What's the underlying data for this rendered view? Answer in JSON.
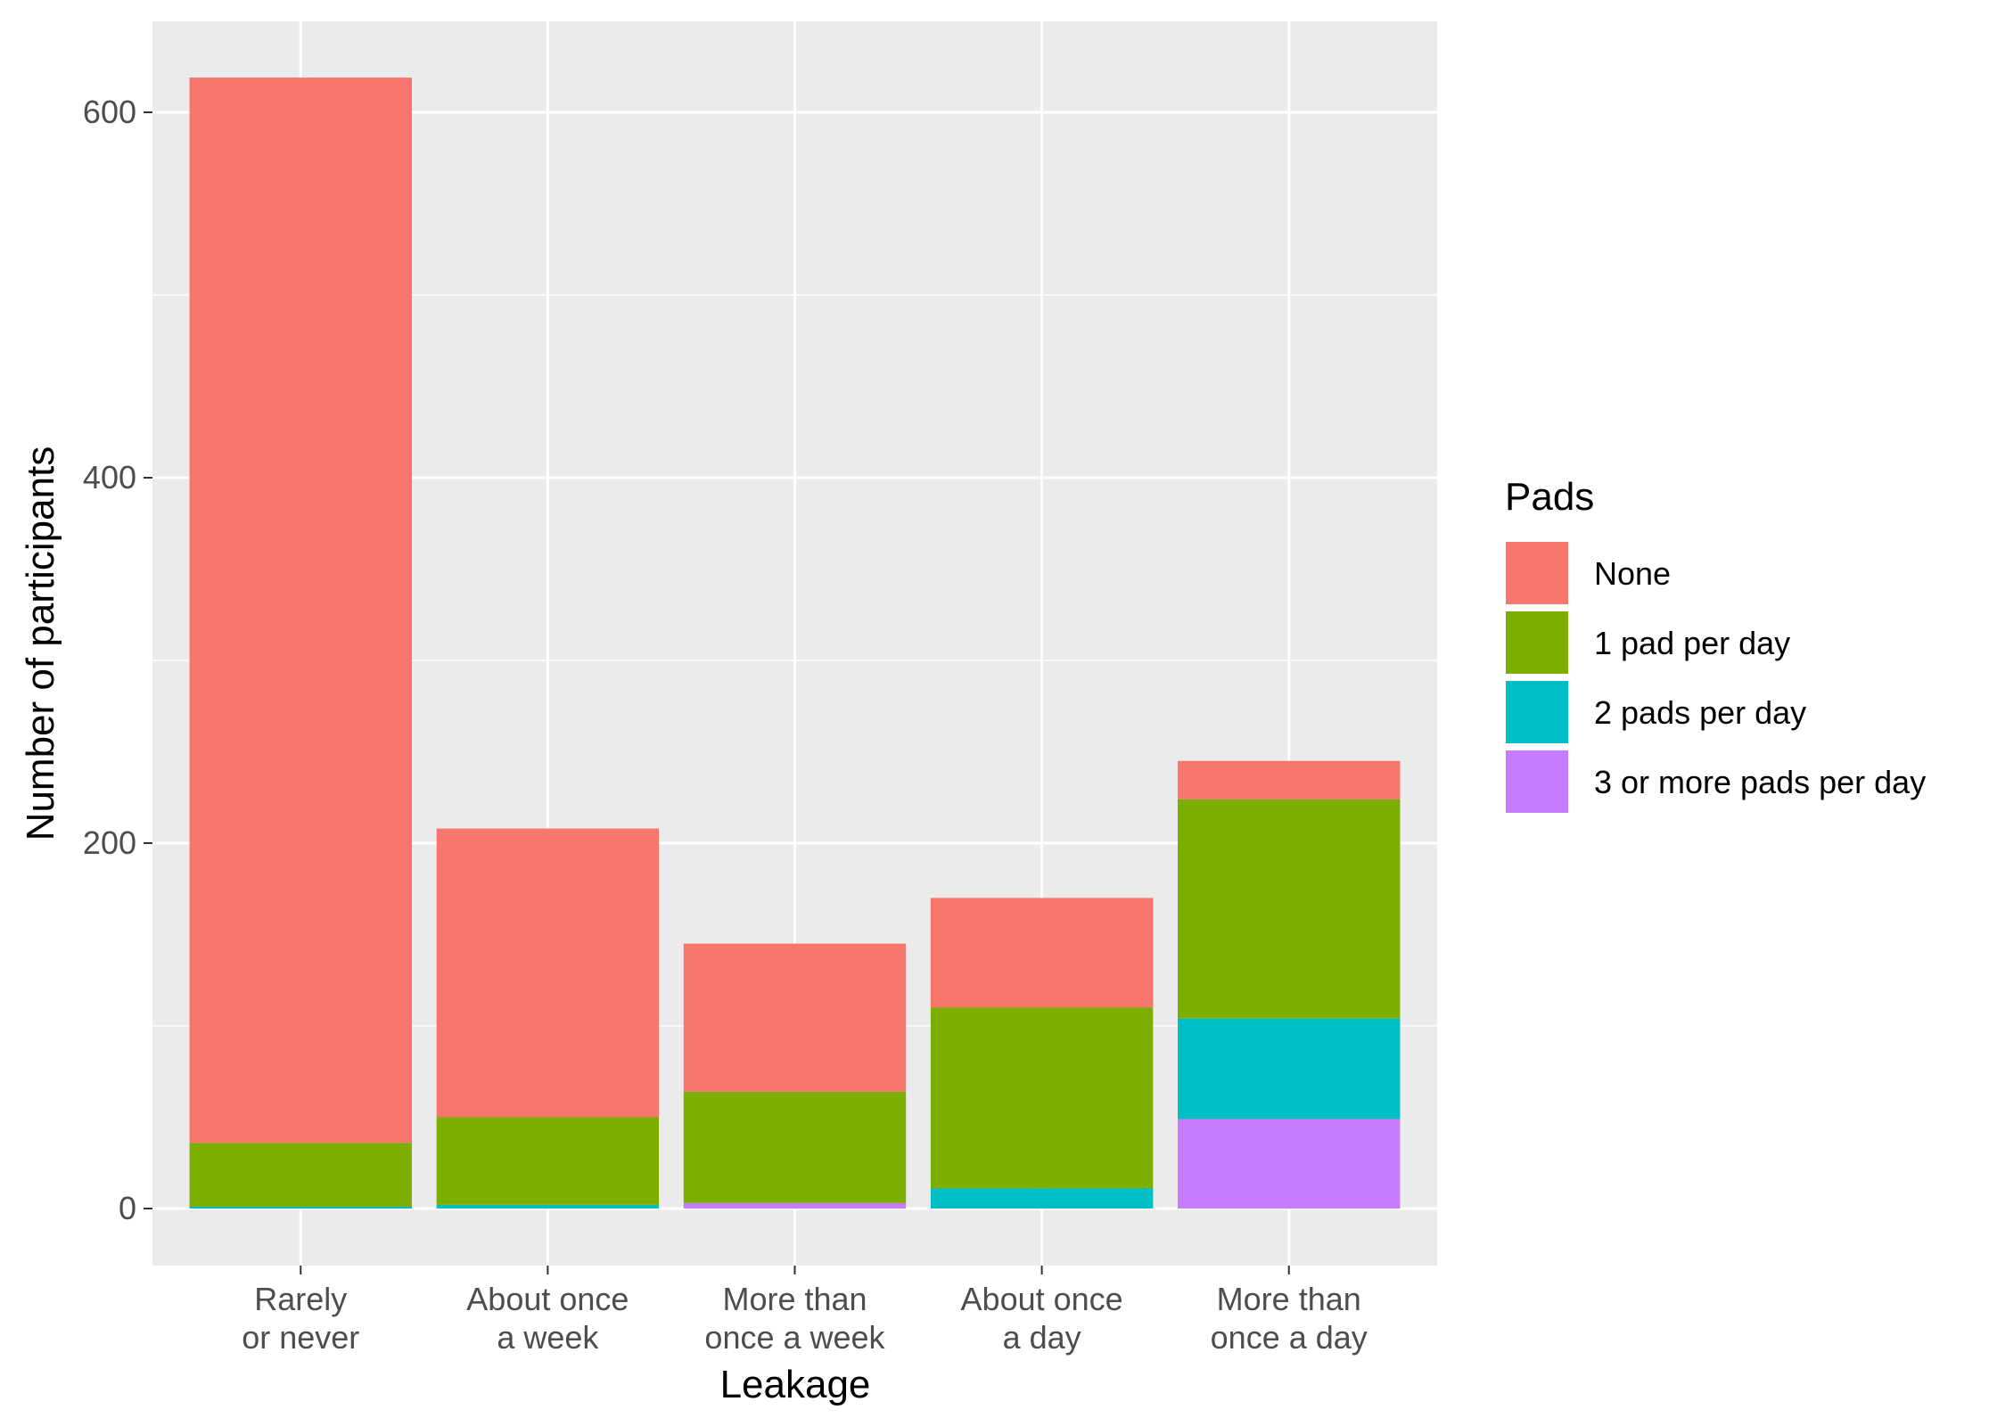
{
  "chart_data": {
    "type": "bar",
    "stacked": true,
    "xlabel": "Leakage",
    "ylabel": "Number of participants",
    "categories": [
      [
        "Rarely",
        "or never"
      ],
      [
        "About once",
        "a week"
      ],
      [
        "More than",
        "once a week"
      ],
      [
        "About once",
        "a day"
      ],
      [
        "More than",
        "once a day"
      ]
    ],
    "yticks": [
      0,
      200,
      400,
      600
    ],
    "ylim": [
      -30,
      650
    ],
    "grid": true,
    "legend": {
      "title": "Pads",
      "position": "right"
    },
    "series": [
      {
        "name": "3 or more pads per day",
        "color": "#C77CFF",
        "values": [
          0,
          0,
          3,
          0,
          49
        ]
      },
      {
        "name": "2 pads per day",
        "color": "#00BFC4",
        "values": [
          1,
          2,
          0,
          11,
          55
        ]
      },
      {
        "name": "1 pad per day",
        "color": "#7CAE00",
        "values": [
          35,
          48,
          61,
          99,
          120
        ]
      },
      {
        "name": "None",
        "color": "#F8766D",
        "values": [
          583,
          158,
          81,
          60,
          21
        ]
      }
    ],
    "legend_order": [
      "None",
      "1 pad per day",
      "2 pads per day",
      "3 or more pads per day"
    ]
  }
}
